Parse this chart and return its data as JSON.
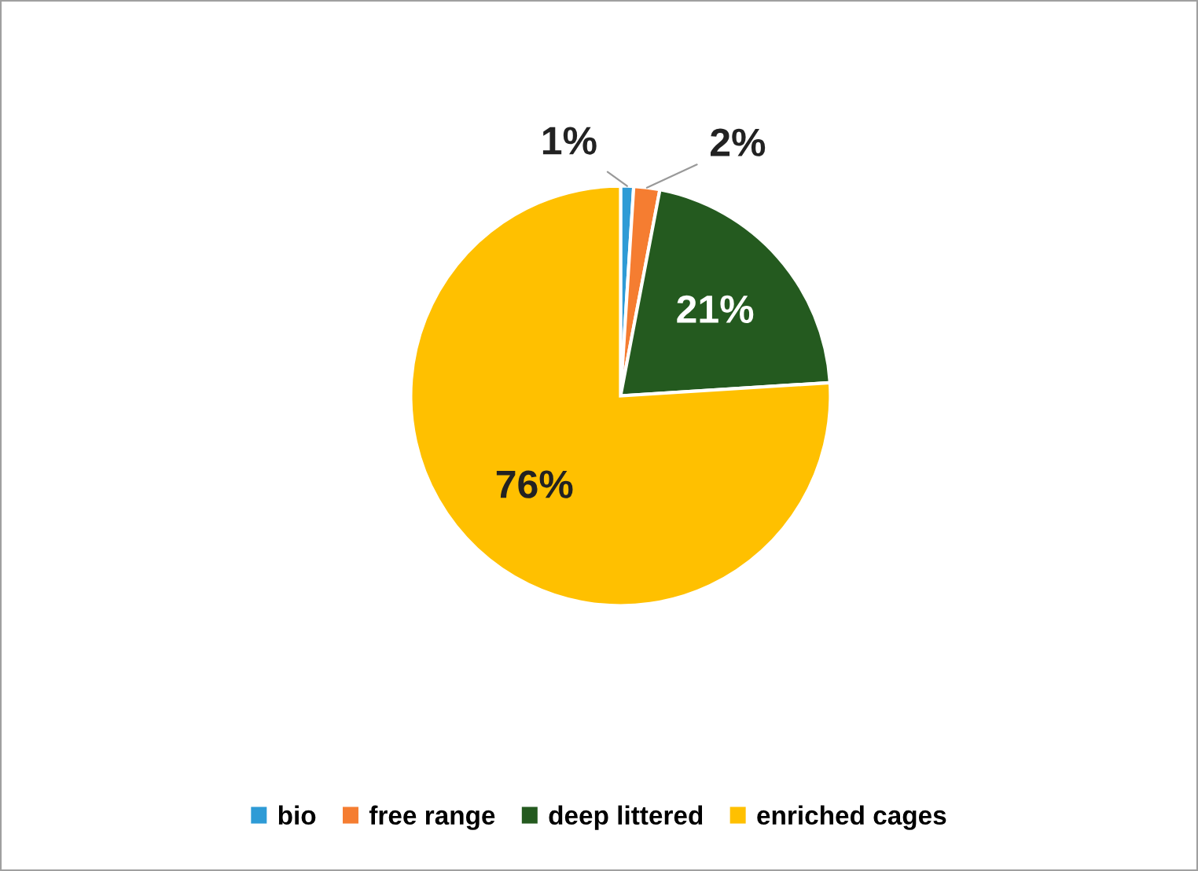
{
  "chart_data": {
    "type": "pie",
    "categories": [
      "bio",
      "free range",
      "deep littered",
      "enriched cages"
    ],
    "values": [
      1,
      2,
      21,
      76
    ],
    "colors": [
      "#2e9bd6",
      "#f57d31",
      "#245a1f",
      "#ffc000"
    ],
    "value_labels": [
      "1%",
      "2%",
      "21%",
      "76%"
    ],
    "legend": "bottom"
  }
}
